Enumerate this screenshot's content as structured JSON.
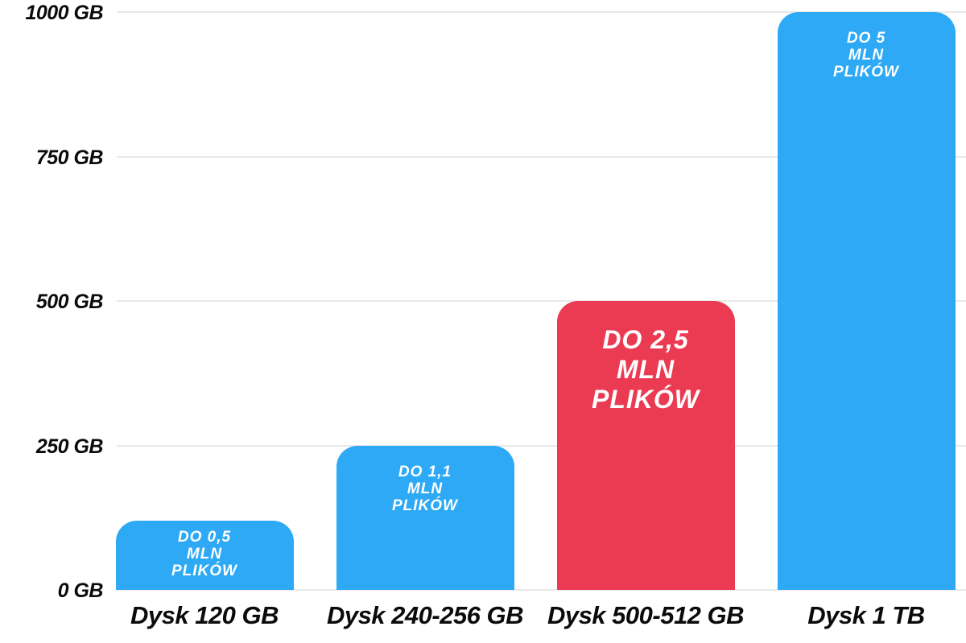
{
  "chart_data": {
    "type": "bar",
    "title": "",
    "xlabel": "",
    "ylabel": "",
    "unit": "GB",
    "categories": [
      "Dysk 120 GB",
      "Dysk 240-256 GB",
      "Dysk 500-512 GB",
      "Dysk 1 TB"
    ],
    "values": [
      120,
      250,
      500,
      1000
    ],
    "bar_annotations": [
      [
        "DO 0,5",
        "MLN",
        "PLIKÓW"
      ],
      [
        "DO 1,1",
        "MLN",
        "PLIKÓW"
      ],
      [
        "DO 2,5",
        "MLN",
        "PLIKÓW"
      ],
      [
        "DO 5",
        "MLN",
        "PLIKÓW"
      ]
    ],
    "bar_colors": [
      "#2EA9F5",
      "#2EA9F5",
      "#EB3B52",
      "#2EA9F5"
    ],
    "highlight_index": 2,
    "y_ticks": [
      {
        "value": 0,
        "label": "0 GB"
      },
      {
        "value": 250,
        "label": "250 GB"
      },
      {
        "value": 500,
        "label": "500 GB"
      },
      {
        "value": 750,
        "label": "750 GB"
      },
      {
        "value": 1000,
        "label": "1000 GB"
      }
    ],
    "ylim": [
      0,
      1000
    ],
    "grid": true,
    "legend": false
  },
  "colors": {
    "background": "#FFFFFF",
    "bar_blue": "#2EA9F5",
    "bar_red": "#EB3B52",
    "gridline": "#E9E9E9",
    "axis_text": "#0B0B0B",
    "bar_label_text": "#FFFFFF"
  }
}
